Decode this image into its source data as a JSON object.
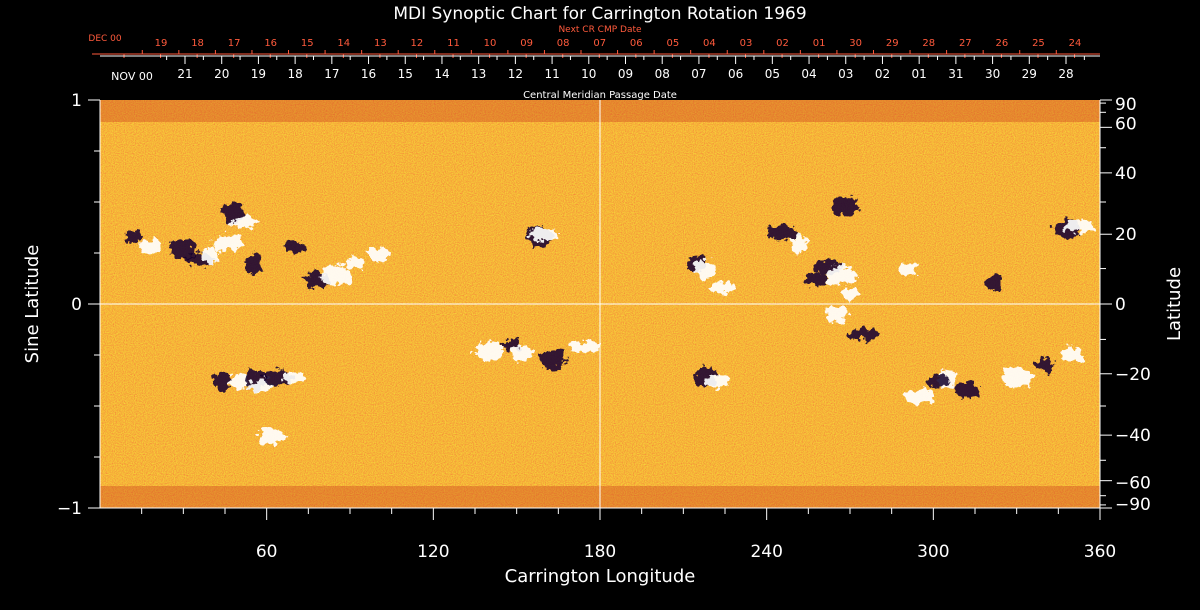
{
  "chart_data": {
    "type": "heatmap",
    "title": "MDI Synoptic Chart for Carrington Rotation 1969",
    "xlabel": "Carrington Longitude",
    "ylabel_left": "Sine Latitude",
    "ylabel_right": "Latitude",
    "xlim": [
      0,
      360
    ],
    "ylim": [
      -1,
      1
    ],
    "x_major_ticks": [
      60,
      120,
      180,
      240,
      300,
      360
    ],
    "y_left_ticks": [
      {
        "value": 1,
        "label": "1"
      },
      {
        "value": 0,
        "label": "0"
      },
      {
        "value": -1,
        "label": "−1"
      }
    ],
    "y_right_ticks": [
      {
        "deg": 90,
        "label": "90"
      },
      {
        "deg": 60,
        "label": "60"
      },
      {
        "deg": 40,
        "label": "40"
      },
      {
        "deg": 20,
        "label": "20"
      },
      {
        "deg": 0,
        "label": "0"
      },
      {
        "deg": -20,
        "label": "−20"
      },
      {
        "deg": -40,
        "label": "−40"
      },
      {
        "deg": -60,
        "label": "−60"
      },
      {
        "deg": -90,
        "label": "−90"
      }
    ],
    "reference_lines": {
      "vertical_longitude": 180,
      "horizontal_sine_latitude": 0
    },
    "colors": {
      "background": "#000000",
      "field_base": "#e8501c",
      "positive_polarity": "#ffffff",
      "negative_polarity": "#160630",
      "next_cmp_labels": "#ff5a3c",
      "cmp_labels": "#ffffff"
    },
    "next_cr_cmp_axis": {
      "title": "Next CR CMP Date",
      "start_label": "DEC 00",
      "dates": [
        "19",
        "18",
        "17",
        "16",
        "15",
        "14",
        "13",
        "12",
        "11",
        "10",
        "09",
        "08",
        "07",
        "06",
        "05",
        "04",
        "03",
        "02",
        "01",
        "30",
        "29",
        "28",
        "27",
        "26",
        "25",
        "24"
      ]
    },
    "cmp_axis": {
      "title": "Central Meridian Passage Date",
      "start_label": "NOV 00",
      "dates": [
        "21",
        "20",
        "19",
        "18",
        "17",
        "16",
        "15",
        "14",
        "13",
        "12",
        "11",
        "10",
        "09",
        "08",
        "07",
        "06",
        "05",
        "04",
        "03",
        "02",
        "01",
        "31",
        "30",
        "29",
        "28"
      ]
    },
    "active_regions": [
      {
        "lon": 12,
        "lat": 0.33,
        "polarity": "negative"
      },
      {
        "lon": 18,
        "lat": 0.28,
        "polarity": "positive"
      },
      {
        "lon": 30,
        "lat": 0.27,
        "polarity": "negative"
      },
      {
        "lon": 36,
        "lat": 0.22,
        "polarity": "negative"
      },
      {
        "lon": 40,
        "lat": 0.24,
        "polarity": "positive"
      },
      {
        "lon": 48,
        "lat": 0.45,
        "polarity": "negative"
      },
      {
        "lon": 52,
        "lat": 0.4,
        "polarity": "positive"
      },
      {
        "lon": 46,
        "lat": 0.3,
        "polarity": "positive"
      },
      {
        "lon": 55,
        "lat": 0.2,
        "polarity": "negative"
      },
      {
        "lon": 70,
        "lat": 0.28,
        "polarity": "negative"
      },
      {
        "lon": 78,
        "lat": 0.12,
        "polarity": "negative"
      },
      {
        "lon": 85,
        "lat": 0.14,
        "polarity": "positive"
      },
      {
        "lon": 92,
        "lat": 0.2,
        "polarity": "positive"
      },
      {
        "lon": 100,
        "lat": 0.24,
        "polarity": "positive"
      },
      {
        "lon": 158,
        "lat": 0.33,
        "polarity": "negative"
      },
      {
        "lon": 160,
        "lat": 0.34,
        "polarity": "positive"
      },
      {
        "lon": 50,
        "lat": -0.38,
        "polarity": "positive"
      },
      {
        "lon": 56,
        "lat": -0.37,
        "polarity": "negative"
      },
      {
        "lon": 58,
        "lat": -0.4,
        "polarity": "positive"
      },
      {
        "lon": 64,
        "lat": -0.36,
        "polarity": "negative"
      },
      {
        "lon": 44,
        "lat": -0.38,
        "polarity": "negative"
      },
      {
        "lon": 70,
        "lat": -0.36,
        "polarity": "positive"
      },
      {
        "lon": 62,
        "lat": -0.65,
        "polarity": "positive"
      },
      {
        "lon": 140,
        "lat": -0.23,
        "polarity": "positive"
      },
      {
        "lon": 148,
        "lat": -0.2,
        "polarity": "negative"
      },
      {
        "lon": 152,
        "lat": -0.24,
        "polarity": "positive"
      },
      {
        "lon": 163,
        "lat": -0.27,
        "polarity": "negative"
      },
      {
        "lon": 175,
        "lat": -0.21,
        "polarity": "positive"
      },
      {
        "lon": 215,
        "lat": 0.2,
        "polarity": "negative"
      },
      {
        "lon": 218,
        "lat": 0.17,
        "polarity": "positive"
      },
      {
        "lon": 224,
        "lat": 0.08,
        "polarity": "positive"
      },
      {
        "lon": 246,
        "lat": 0.35,
        "polarity": "negative"
      },
      {
        "lon": 252,
        "lat": 0.3,
        "polarity": "positive"
      },
      {
        "lon": 258,
        "lat": 0.12,
        "polarity": "negative"
      },
      {
        "lon": 262,
        "lat": 0.18,
        "polarity": "negative"
      },
      {
        "lon": 267,
        "lat": 0.14,
        "polarity": "positive"
      },
      {
        "lon": 270,
        "lat": 0.05,
        "polarity": "positive"
      },
      {
        "lon": 265,
        "lat": -0.05,
        "polarity": "positive"
      },
      {
        "lon": 268,
        "lat": 0.48,
        "polarity": "negative"
      },
      {
        "lon": 275,
        "lat": -0.15,
        "polarity": "negative"
      },
      {
        "lon": 291,
        "lat": 0.17,
        "polarity": "positive"
      },
      {
        "lon": 218,
        "lat": -0.36,
        "polarity": "negative"
      },
      {
        "lon": 222,
        "lat": -0.38,
        "polarity": "positive"
      },
      {
        "lon": 295,
        "lat": -0.45,
        "polarity": "positive"
      },
      {
        "lon": 305,
        "lat": -0.37,
        "polarity": "positive"
      },
      {
        "lon": 302,
        "lat": -0.38,
        "polarity": "negative"
      },
      {
        "lon": 312,
        "lat": -0.42,
        "polarity": "negative"
      },
      {
        "lon": 330,
        "lat": -0.36,
        "polarity": "positive"
      },
      {
        "lon": 340,
        "lat": -0.3,
        "polarity": "negative"
      },
      {
        "lon": 350,
        "lat": -0.25,
        "polarity": "positive"
      },
      {
        "lon": 348,
        "lat": 0.37,
        "polarity": "negative"
      },
      {
        "lon": 352,
        "lat": 0.38,
        "polarity": "positive"
      },
      {
        "lon": 322,
        "lat": 0.1,
        "polarity": "negative"
      }
    ]
  }
}
